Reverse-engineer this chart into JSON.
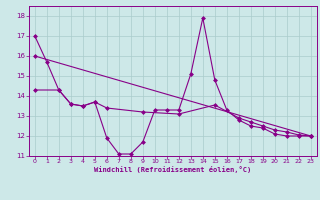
{
  "bg_color": "#cde8e8",
  "line_color": "#880088",
  "grid_color": "#aacccc",
  "xlabel": "Windchill (Refroidissement éolien,°C)",
  "xlim": [
    -0.5,
    23.5
  ],
  "ylim": [
    11,
    18.5
  ],
  "yticks": [
    11,
    12,
    13,
    14,
    15,
    16,
    17,
    18
  ],
  "xticks": [
    0,
    1,
    2,
    3,
    4,
    5,
    6,
    7,
    8,
    9,
    10,
    11,
    12,
    13,
    14,
    15,
    16,
    17,
    18,
    19,
    20,
    21,
    22,
    23
  ],
  "line1_x": [
    0,
    1,
    2,
    3,
    4,
    5,
    6,
    7,
    8,
    9,
    10,
    11,
    12,
    13,
    14,
    15,
    16,
    17,
    18,
    19,
    20,
    21,
    22,
    23
  ],
  "line1_y": [
    17.0,
    15.7,
    14.3,
    13.6,
    13.5,
    13.7,
    11.9,
    11.1,
    11.1,
    11.7,
    13.3,
    13.3,
    13.3,
    15.1,
    17.9,
    14.8,
    13.3,
    12.8,
    12.5,
    12.4,
    12.1,
    12.0,
    12.0,
    12.0
  ],
  "line2_x": [
    0,
    2,
    3,
    4,
    5,
    6,
    9,
    12,
    15,
    17,
    18,
    19,
    20,
    21,
    22,
    23
  ],
  "line2_y": [
    14.3,
    14.3,
    13.6,
    13.5,
    13.7,
    13.4,
    13.2,
    13.1,
    13.55,
    12.9,
    12.7,
    12.5,
    12.3,
    12.2,
    12.05,
    12.0
  ],
  "line3_x": [
    0,
    23
  ],
  "line3_y": [
    16.0,
    12.0
  ]
}
